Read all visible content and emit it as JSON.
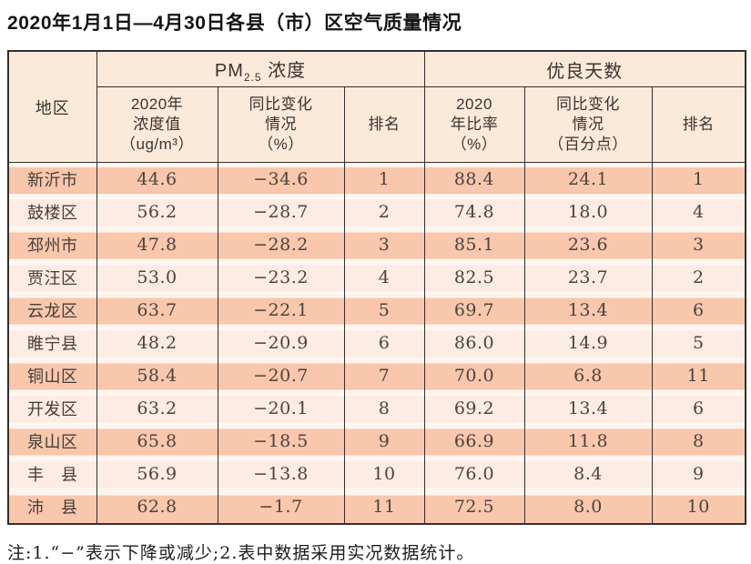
{
  "title": "2020年1月1日—4月30日各县（市）区空气质量情况",
  "table": {
    "region_header": "地区",
    "groups": {
      "pm25_prefix": "PM",
      "pm25_sub": "2.5",
      "pm25_suffix": " 浓度",
      "good_days": "优良天数"
    },
    "subheaders": [
      "2020年\n浓度值\n（ug/m³）",
      "同比变化\n情况\n（%）",
      "排名",
      "2020\n年比率\n（%）",
      "同比变化\n情况\n（百分点）",
      "排名"
    ],
    "rows": [
      [
        "新沂市",
        "44.6",
        "−34.6",
        "1",
        "88.4",
        "24.1",
        "1"
      ],
      [
        "鼓楼区",
        "56.2",
        "−28.7",
        "2",
        "74.8",
        "18.0",
        "4"
      ],
      [
        "邳州市",
        "47.8",
        "−28.2",
        "3",
        "85.1",
        "23.6",
        "3"
      ],
      [
        "贾汪区",
        "53.0",
        "−23.2",
        "4",
        "82.5",
        "23.7",
        "2"
      ],
      [
        "云龙区",
        "63.7",
        "−22.1",
        "5",
        "69.7",
        "13.4",
        "6"
      ],
      [
        "睢宁县",
        "48.2",
        "−20.9",
        "6",
        "86.0",
        "14.9",
        "5"
      ],
      [
        "铜山区",
        "58.4",
        "−20.7",
        "7",
        "70.0",
        "6.8",
        "11"
      ],
      [
        "开发区",
        "63.2",
        "−20.1",
        "8",
        "69.2",
        "13.4",
        "6"
      ],
      [
        "泉山区",
        "65.8",
        "−18.5",
        "9",
        "66.9",
        "11.8",
        "8"
      ],
      [
        "丰　县",
        "56.9",
        "−13.8",
        "10",
        "76.0",
        "8.4",
        "9"
      ],
      [
        "沛　县",
        "62.8",
        "−1.7",
        "11",
        "72.5",
        "8.0",
        "10"
      ]
    ]
  },
  "note": "注:1.“−”表示下降或减少;2.表中数据采用实况数据统计。",
  "colors": {
    "stripe_dark": "#f8c7ac",
    "stripe_light": "#fcece3",
    "stripe_gap": "#fdf5f0",
    "header_bg": "#fbe9da",
    "border": "#33302d"
  }
}
